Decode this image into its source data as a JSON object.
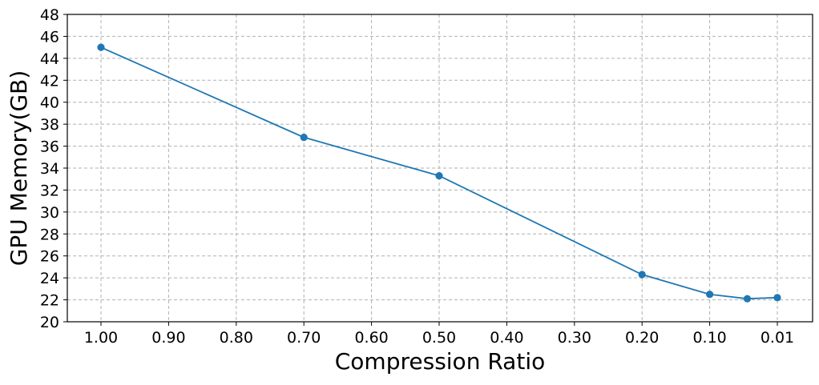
{
  "chart_data": {
    "type": "line",
    "title": "",
    "xlabel": "Compression Ratio",
    "ylabel": "GPU Memory(GB)",
    "x_tick_labels": [
      "1.00",
      "0.90",
      "0.80",
      "0.70",
      "0.60",
      "0.50",
      "0.40",
      "0.30",
      "0.20",
      "0.10",
      "0.01"
    ],
    "x_ticks": [
      1.0,
      0.9,
      0.8,
      0.7,
      0.6,
      0.5,
      0.4,
      0.3,
      0.2,
      0.1,
      0.01
    ],
    "y_ticks": [
      20,
      22,
      24,
      26,
      28,
      30,
      32,
      34,
      36,
      38,
      40,
      42,
      44,
      46,
      48
    ],
    "ylim": [
      20,
      48
    ],
    "x_axis_reversed": true,
    "grid": true,
    "series": [
      {
        "name": "",
        "color": "#1f77b4",
        "marker": "circle",
        "x": [
          1.0,
          0.7,
          0.5,
          0.2,
          0.1,
          0.05,
          0.01
        ],
        "y": [
          45.0,
          36.8,
          33.3,
          24.3,
          22.5,
          22.1,
          22.2
        ]
      }
    ]
  }
}
